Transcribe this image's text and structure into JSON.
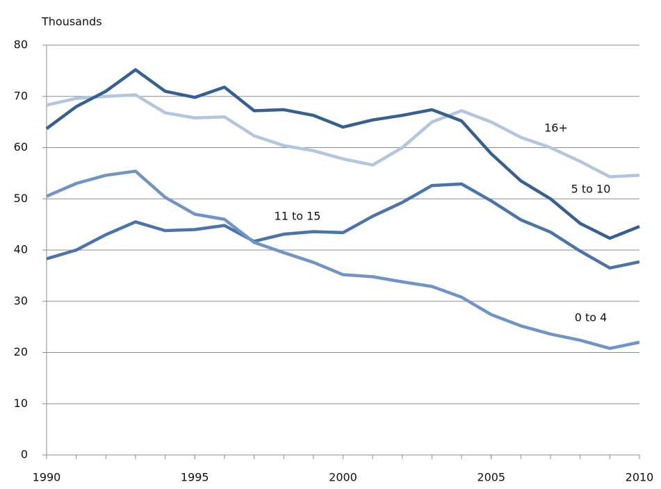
{
  "chart_data": {
    "type": "line",
    "y_axis_label": "Thousands",
    "x": [
      1990,
      1991,
      1992,
      1993,
      1994,
      1995,
      1996,
      1997,
      1998,
      1999,
      2000,
      2001,
      2002,
      2003,
      2004,
      2005,
      2006,
      2007,
      2008,
      2009,
      2010
    ],
    "xlim": [
      1990,
      2010
    ],
    "xticks": [
      1990,
      1995,
      2000,
      2005,
      2010
    ],
    "ylim": [
      0,
      80
    ],
    "yticks": [
      0,
      10,
      20,
      30,
      40,
      50,
      60,
      70,
      80
    ],
    "grid": true,
    "series": [
      {
        "name": "16+",
        "color": "#b3c6e0",
        "values": [
          68.3,
          69.6,
          70,
          70.3,
          66.8,
          65.8,
          66,
          62.3,
          60.4,
          59.4,
          57.8,
          56.6,
          60,
          65,
          67.2,
          65,
          62,
          60,
          57.3,
          54.3,
          54.6
        ]
      },
      {
        "name": "5 to 10",
        "color": "#35608f",
        "values": [
          63.7,
          68,
          71,
          75.2,
          71,
          69.8,
          71.8,
          67.2,
          67.4,
          66.3,
          64,
          65.4,
          66.3,
          67.4,
          65.2,
          58.8,
          53.5,
          50,
          45.2,
          42.3,
          44.6
        ]
      },
      {
        "name": "11 to 15",
        "color": "#4a74aa",
        "values": [
          38.3,
          40,
          43,
          45.5,
          43.8,
          44,
          44.8,
          41.7,
          43.1,
          43.6,
          43.4,
          46.6,
          49.3,
          52.6,
          52.9,
          49.6,
          45.9,
          43.5,
          39.8,
          36.5,
          37.7
        ]
      },
      {
        "name": "0 to 4",
        "color": "#7094c6",
        "values": [
          50.5,
          53,
          54.6,
          55.4,
          50.3,
          47,
          46,
          41.5,
          39.5,
          37.6,
          35.2,
          34.8,
          33.8,
          32.9,
          30.8,
          27.4,
          25.2,
          23.6,
          22.4,
          20.8,
          22
        ]
      }
    ]
  }
}
